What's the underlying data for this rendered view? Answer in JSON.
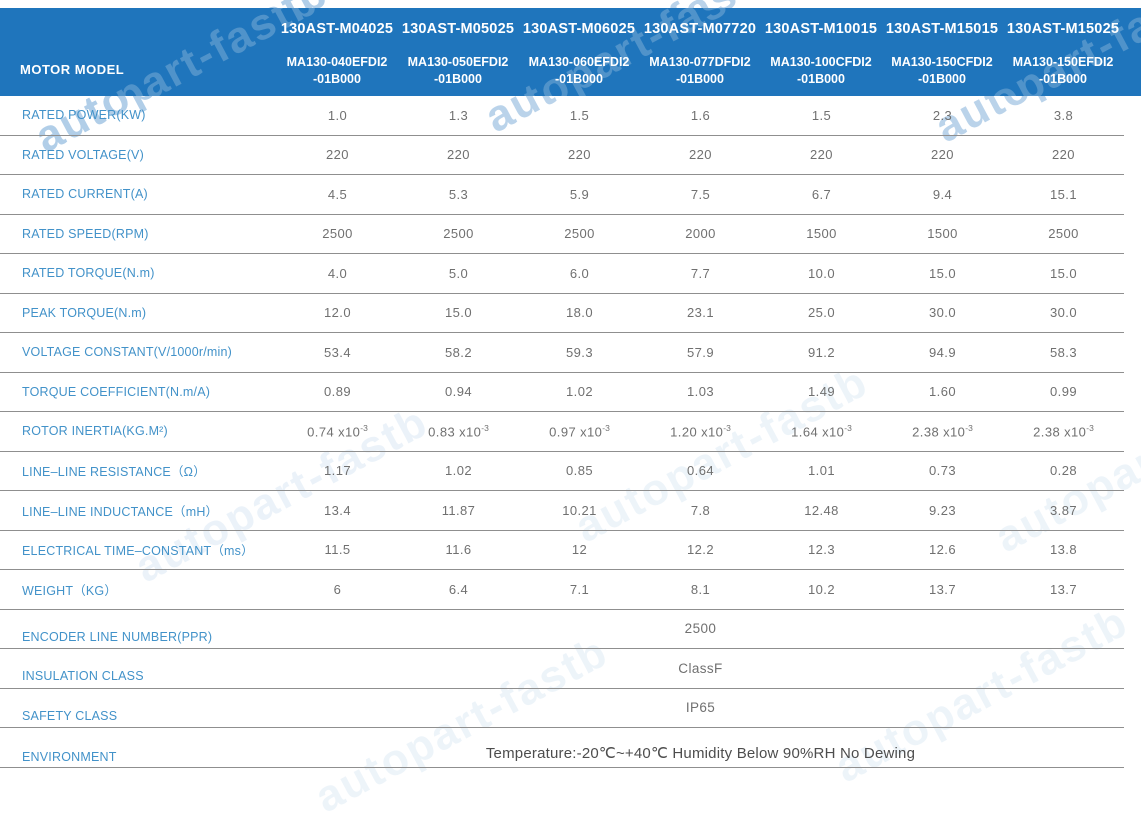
{
  "watermark": {
    "text": "autopart-fastb"
  },
  "header": {
    "row_label": "MOTOR MODEL",
    "models": [
      {
        "series": "130AST-M04025",
        "model_lines": [
          "MA130-040EFDI2",
          "-01B000"
        ]
      },
      {
        "series": "130AST-M05025",
        "model_lines": [
          "MA130-050EFDI2",
          "-01B000"
        ]
      },
      {
        "series": "130AST-M06025",
        "model_lines": [
          "MA130-060EFDI2",
          "-01B000"
        ]
      },
      {
        "series": "130AST-M07720",
        "model_lines": [
          "MA130-077DFDI2",
          "-01B000"
        ]
      },
      {
        "series": "130AST-M10015",
        "model_lines": [
          "MA130-100CFDI2",
          "-01B000"
        ]
      },
      {
        "series": "130AST-M15015",
        "model_lines": [
          "MA130-150CFDI2",
          "-01B000"
        ]
      },
      {
        "series": "130AST-M15025",
        "model_lines": [
          "MA130-150EFDI2",
          "-01B000"
        ]
      }
    ]
  },
  "table": {
    "rows": [
      {
        "label": "RATED POWER(KW)",
        "values": [
          "1.0",
          "1.3",
          "1.5",
          "1.6",
          "1.5",
          "2.3",
          "3.8"
        ]
      },
      {
        "label": "RATED VOLTAGE(V)",
        "values": [
          "220",
          "220",
          "220",
          "220",
          "220",
          "220",
          "220"
        ]
      },
      {
        "label": "RATED CURRENT(A)",
        "values": [
          "4.5",
          "5.3",
          "5.9",
          "7.5",
          "6.7",
          "9.4",
          "15.1"
        ]
      },
      {
        "label": "RATED SPEED(RPM)",
        "values": [
          "2500",
          "2500",
          "2500",
          "2000",
          "1500",
          "1500",
          "2500"
        ]
      },
      {
        "label": "RATED TORQUE(N.m)",
        "values": [
          "4.0",
          "5.0",
          "6.0",
          "7.7",
          "10.0",
          "15.0",
          "15.0"
        ]
      },
      {
        "label": "PEAK TORQUE(N.m)",
        "values": [
          "12.0",
          "15.0",
          "18.0",
          "23.1",
          "25.0",
          "30.0",
          "30.0"
        ]
      },
      {
        "label": "VOLTAGE CONSTANT(V/1000r/min)",
        "values": [
          "53.4",
          "58.2",
          "59.3",
          "57.9",
          "91.2",
          "94.9",
          "58.3"
        ]
      },
      {
        "label": "TORQUE COEFFICIENT(N.m/A)",
        "values": [
          "0.89",
          "0.94",
          "1.02",
          "1.03",
          "1.49",
          "1.60",
          "0.99"
        ]
      },
      {
        "label": "ROTOR INERTIA(KG.M²)",
        "values": [
          "0.74 x10^-3",
          "0.83 x10^-3",
          "0.97 x10^-3",
          "1.20 x10^-3",
          "1.64 x10^-3",
          "2.38 x10^-3",
          "2.38 x10^-3"
        ]
      },
      {
        "label": "LINE–LINE RESISTANCE（Ω）",
        "values": [
          "1.17",
          "1.02",
          "0.85",
          "0.64",
          "1.01",
          "0.73",
          "0.28"
        ]
      },
      {
        "label": "LINE–LINE INDUCTANCE（mH）",
        "values": [
          "13.4",
          "11.87",
          "10.21",
          "7.8",
          "12.48",
          "9.23",
          "3.87"
        ]
      },
      {
        "label": "ELECTRICAL TIME–CONSTANT（ms）",
        "values": [
          "11.5",
          "11.6",
          "12",
          "12.2",
          "12.3",
          "12.6",
          "13.8"
        ]
      },
      {
        "label": "WEIGHT（KG）",
        "values": [
          "6",
          "6.4",
          "7.1",
          "8.1",
          "10.2",
          "13.7",
          "13.7"
        ]
      }
    ],
    "span_rows": [
      {
        "label": "ENCODER LINE NUMBER(PPR)",
        "value": "2500"
      },
      {
        "label": "INSULATION CLASS",
        "value": "ClassF"
      },
      {
        "label": "SAFETY CLASS",
        "value": "IP65"
      },
      {
        "label": "ENVIRONMENT",
        "value": "Temperature:-20℃~+40℃  Humidity Below 90%RH No Dewing",
        "emphasis": true
      }
    ]
  }
}
